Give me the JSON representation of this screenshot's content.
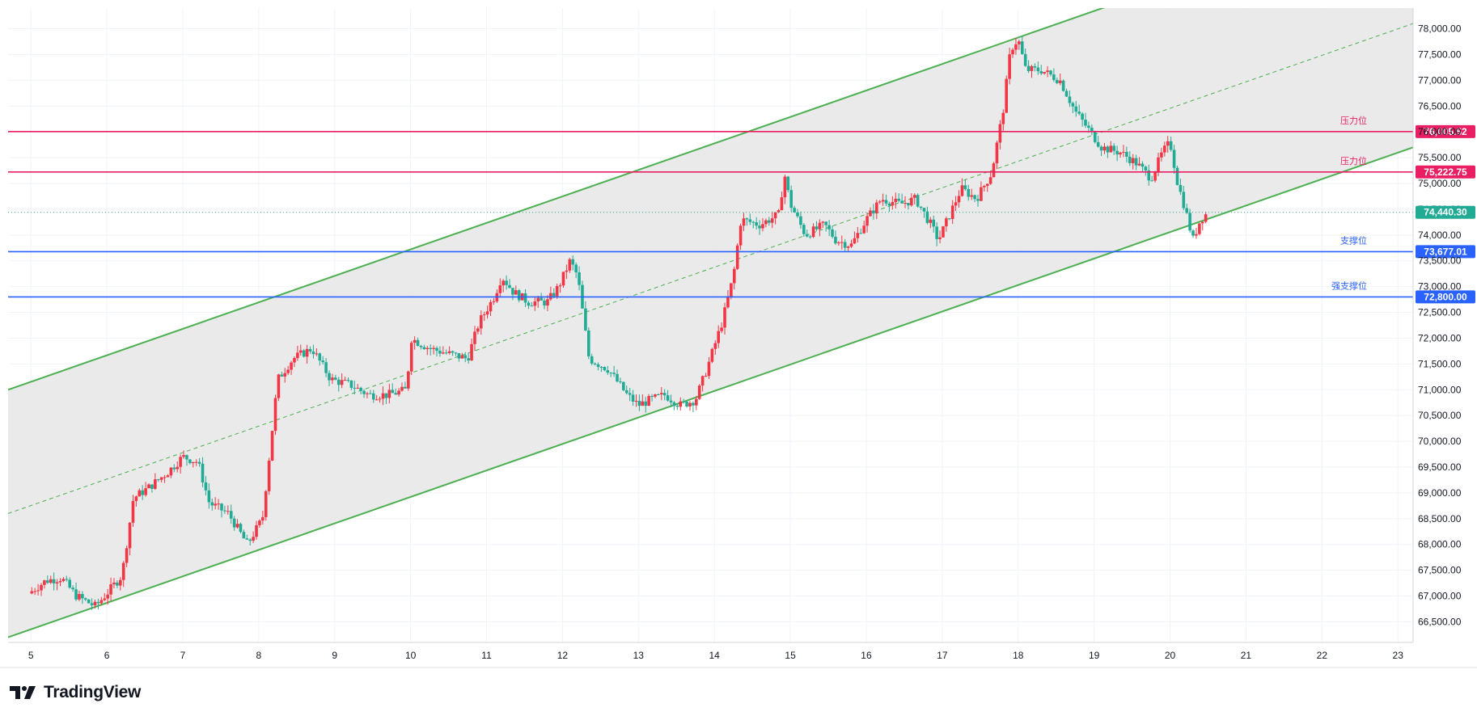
{
  "brand": {
    "name": "TradingView",
    "icon": "tradingview-logo-icon"
  },
  "colors": {
    "up": "#f23645",
    "down": "#22ab94",
    "channel": "#4caf50",
    "channel_fill": "#e6e6e6",
    "resistance": "#e91e63",
    "support": "#2962ff",
    "last_price": "#22ab94",
    "grid": "#f0f3fa",
    "axis_text": "#131722"
  },
  "chart_data": {
    "type": "candlestick",
    "instrument_hint": "BTC",
    "x_axis": {
      "type": "day-of-month",
      "range": [
        4.7,
        23.2
      ],
      "tick_labels": [
        "5",
        "6",
        "7",
        "8",
        "9",
        "10",
        "11",
        "12",
        "13",
        "14",
        "15",
        "16",
        "17",
        "18",
        "19",
        "20",
        "21",
        "22",
        "23"
      ]
    },
    "y_axis": {
      "range": [
        66100,
        78400
      ],
      "position": "right",
      "tick_labels": [
        "78,000.00",
        "77,500.00",
        "77,000.00",
        "76,500.00",
        "76,000.00",
        "75,500.00",
        "75,000.00",
        "74,500.00",
        "74,000.00",
        "73,500.00",
        "73,000.00",
        "72,500.00",
        "72,000.00",
        "71,500.00",
        "71,000.00",
        "70,500.00",
        "70,000.00",
        "69,500.00",
        "69,000.00",
        "68,500.00",
        "68,000.00",
        "67,500.00",
        "67,000.00",
        "66,500.00"
      ]
    },
    "grid": true,
    "price_path": [
      [
        4.97,
        67050
      ],
      [
        5.2,
        67300
      ],
      [
        5.4,
        67350
      ],
      [
        5.6,
        67000
      ],
      [
        5.85,
        66800
      ],
      [
        6.0,
        67050
      ],
      [
        6.2,
        67400
      ],
      [
        6.35,
        68900
      ],
      [
        6.55,
        69100
      ],
      [
        6.8,
        69400
      ],
      [
        7.0,
        69700
      ],
      [
        7.2,
        69600
      ],
      [
        7.35,
        68800
      ],
      [
        7.6,
        68600
      ],
      [
        7.85,
        68000
      ],
      [
        8.05,
        68500
      ],
      [
        8.25,
        71200
      ],
      [
        8.45,
        71600
      ],
      [
        8.7,
        71800
      ],
      [
        8.95,
        71200
      ],
      [
        9.2,
        71100
      ],
      [
        9.45,
        70900
      ],
      [
        9.7,
        70900
      ],
      [
        9.95,
        71000
      ],
      [
        10.0,
        72000
      ],
      [
        10.25,
        71800
      ],
      [
        10.5,
        71700
      ],
      [
        10.75,
        71600
      ],
      [
        10.9,
        72300
      ],
      [
        11.1,
        72800
      ],
      [
        11.2,
        73200
      ],
      [
        11.35,
        72900
      ],
      [
        11.55,
        72700
      ],
      [
        11.8,
        72700
      ],
      [
        11.95,
        73000
      ],
      [
        12.1,
        73500
      ],
      [
        12.2,
        73200
      ],
      [
        12.35,
        71600
      ],
      [
        12.6,
        71400
      ],
      [
        12.85,
        70900
      ],
      [
        13.0,
        70700
      ],
      [
        13.15,
        70800
      ],
      [
        13.35,
        70900
      ],
      [
        13.55,
        70700
      ],
      [
        13.75,
        70800
      ],
      [
        13.9,
        71400
      ],
      [
        14.1,
        72300
      ],
      [
        14.25,
        73200
      ],
      [
        14.35,
        74300
      ],
      [
        14.6,
        74200
      ],
      [
        14.85,
        74400
      ],
      [
        14.92,
        75200
      ],
      [
        15.0,
        74600
      ],
      [
        15.2,
        74000
      ],
      [
        15.45,
        74200
      ],
      [
        15.6,
        73900
      ],
      [
        15.8,
        73800
      ],
      [
        16.0,
        74300
      ],
      [
        16.2,
        74700
      ],
      [
        16.45,
        74600
      ],
      [
        16.65,
        74700
      ],
      [
        16.85,
        74200
      ],
      [
        16.95,
        73900
      ],
      [
        17.1,
        74400
      ],
      [
        17.25,
        74900
      ],
      [
        17.45,
        74700
      ],
      [
        17.65,
        75200
      ],
      [
        17.8,
        76400
      ],
      [
        17.9,
        77600
      ],
      [
        18.0,
        77800
      ],
      [
        18.1,
        77200
      ],
      [
        18.3,
        77200
      ],
      [
        18.55,
        77000
      ],
      [
        18.75,
        76400
      ],
      [
        18.95,
        76000
      ],
      [
        19.1,
        75700
      ],
      [
        19.35,
        75600
      ],
      [
        19.55,
        75400
      ],
      [
        19.75,
        75100
      ],
      [
        19.9,
        75600
      ],
      [
        20.0,
        75800
      ],
      [
        20.1,
        75000
      ],
      [
        20.2,
        74500
      ],
      [
        20.3,
        73900
      ],
      [
        20.4,
        74300
      ],
      [
        20.5,
        74440
      ]
    ],
    "channel": {
      "upper": {
        "from": [
          4.7,
          71000
        ],
        "to": [
          23.2,
          80500
        ]
      },
      "lower": {
        "from": [
          4.7,
          66200
        ],
        "to": [
          23.2,
          75700
        ]
      },
      "mid_dashed": true
    },
    "horizontal_levels": [
      {
        "price": 76005.52,
        "badge": "76,005.52",
        "label": "压力位",
        "kind": "resistance"
      },
      {
        "price": 75222.75,
        "badge": "75,222.75",
        "label": "压力位",
        "kind": "resistance"
      },
      {
        "price": 73677.01,
        "badge": "73,677.01",
        "label": "支撑位",
        "kind": "support"
      },
      {
        "price": 72800.0,
        "badge": "72,800.00",
        "label": "强支撑位",
        "kind": "support"
      }
    ],
    "last_price": {
      "value": 74440.3,
      "badge": "74,440.30"
    }
  }
}
